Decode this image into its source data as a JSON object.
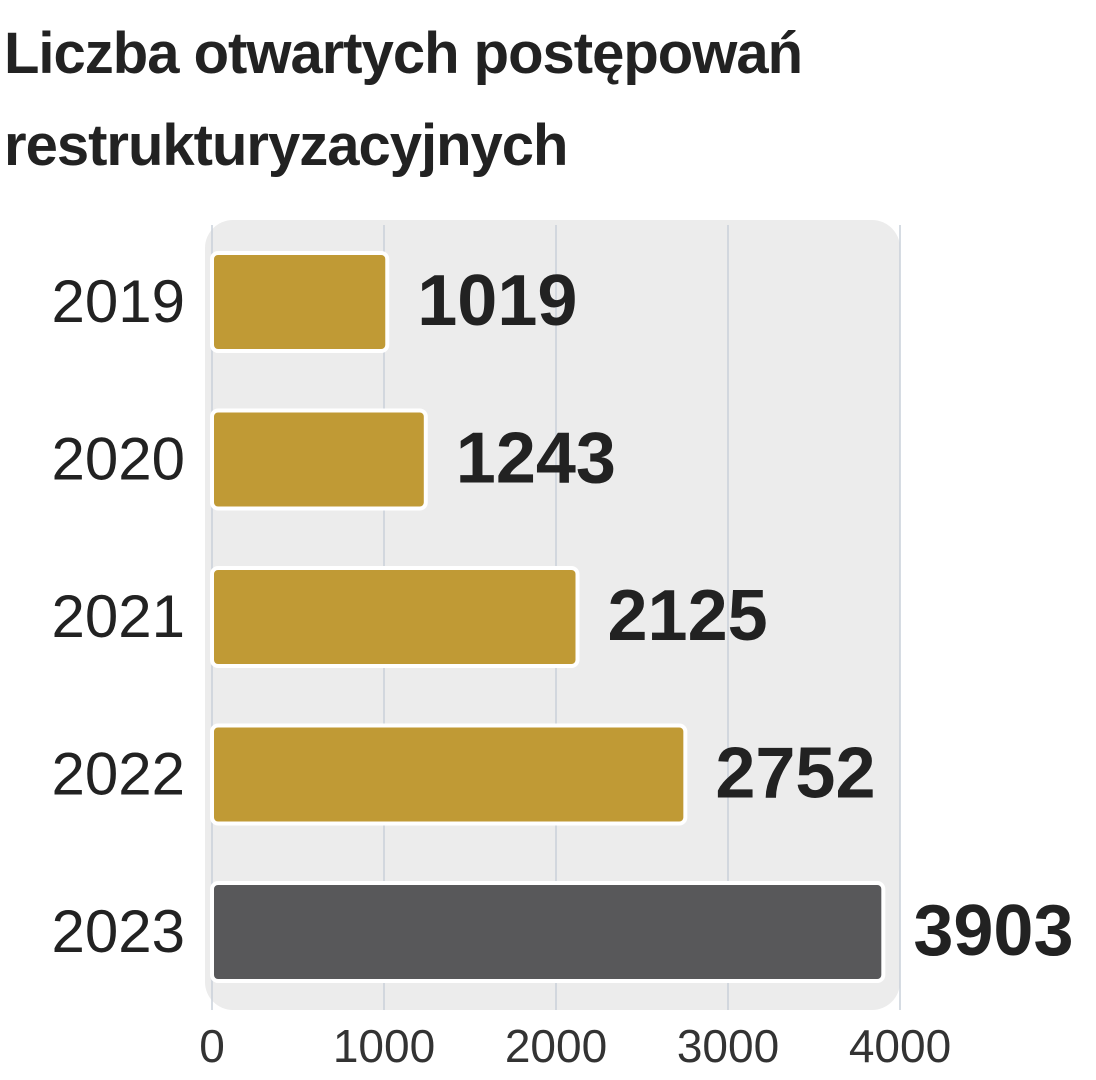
{
  "chart_data": {
    "type": "bar",
    "orientation": "horizontal",
    "title": "Liczba otwartych postępowań restrukturyzacyjnych",
    "categories": [
      "2019",
      "2020",
      "2021",
      "2022",
      "2023"
    ],
    "values": [
      1019,
      1243,
      2125,
      2752,
      3903
    ],
    "colors": [
      "#c09a35",
      "#c09a35",
      "#c09a35",
      "#c09a35",
      "#58585a"
    ],
    "xlim": [
      0,
      4000
    ],
    "xticks": [
      0,
      1000,
      2000,
      3000,
      4000
    ],
    "grid": true
  }
}
